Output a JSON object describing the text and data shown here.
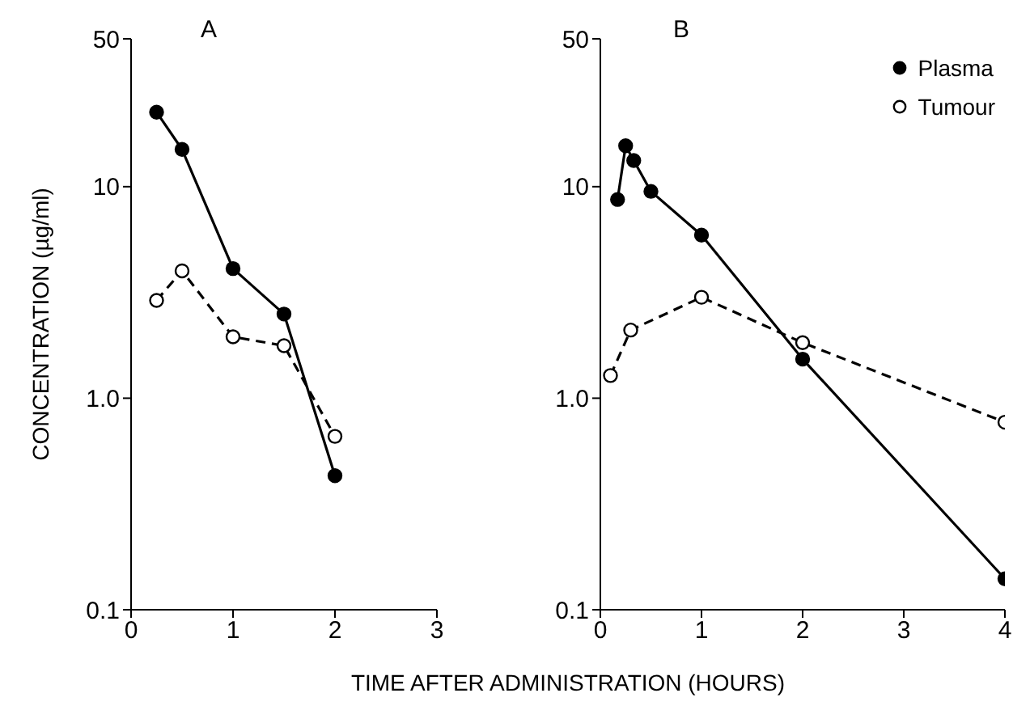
{
  "chart_data": [
    {
      "type": "line",
      "title": "A",
      "xlabel": "TIME AFTER ADMINISTRATION (HOURS)",
      "ylabel": "CONCENTRATION (µg/ml)",
      "log": "y",
      "xlim": [
        0,
        3
      ],
      "xticks": [
        0,
        1,
        2,
        3
      ],
      "ylim": [
        0.1,
        50
      ],
      "yticks": [
        0.1,
        {
          "value": 1,
          "label": "1.0"
        },
        10,
        50
      ],
      "grid": false,
      "legend": false,
      "series": [
        {
          "color": "#000000",
          "marker": "circle",
          "line_style": "solid",
          "x": [
            0.25,
            0.5,
            1,
            1.5,
            2
          ],
          "values": [
            22.5,
            15,
            4.1,
            2.5,
            0.43
          ]
        },
        {
          "color": "#000000",
          "marker": "circle",
          "line_style": "dashed",
          "x": [
            0.25,
            0.5,
            1,
            1.5,
            2
          ],
          "values": [
            2.9,
            4.0,
            1.95,
            1.77,
            0.66
          ]
        }
      ]
    },
    {
      "type": "line",
      "title": "B",
      "log": "y",
      "xlim": [
        0,
        4
      ],
      "xticks": [
        0,
        1,
        2,
        3,
        4
      ],
      "ylim": [
        0.1,
        50
      ],
      "yticks": [
        0.1,
        {
          "value": 1,
          "label": "1.0"
        },
        10,
        50
      ],
      "grid": false,
      "legend": "top right",
      "series": [
        {
          "name": "Plasma",
          "color": "#000000",
          "marker": "circle",
          "line_style": "solid",
          "x": [
            0.17,
            0.25,
            0.33,
            0.5,
            1,
            2,
            4
          ],
          "values": [
            8.7,
            15.6,
            13.3,
            9.5,
            5.9,
            1.53,
            0.14
          ]
        },
        {
          "name": "Tumour",
          "color": "#000000",
          "marker": "circle",
          "line_style": "dashed",
          "x": [
            0.1,
            0.3,
            1,
            2,
            4
          ],
          "values": [
            1.28,
            2.1,
            3.0,
            1.83,
            0.77
          ]
        }
      ]
    }
  ]
}
